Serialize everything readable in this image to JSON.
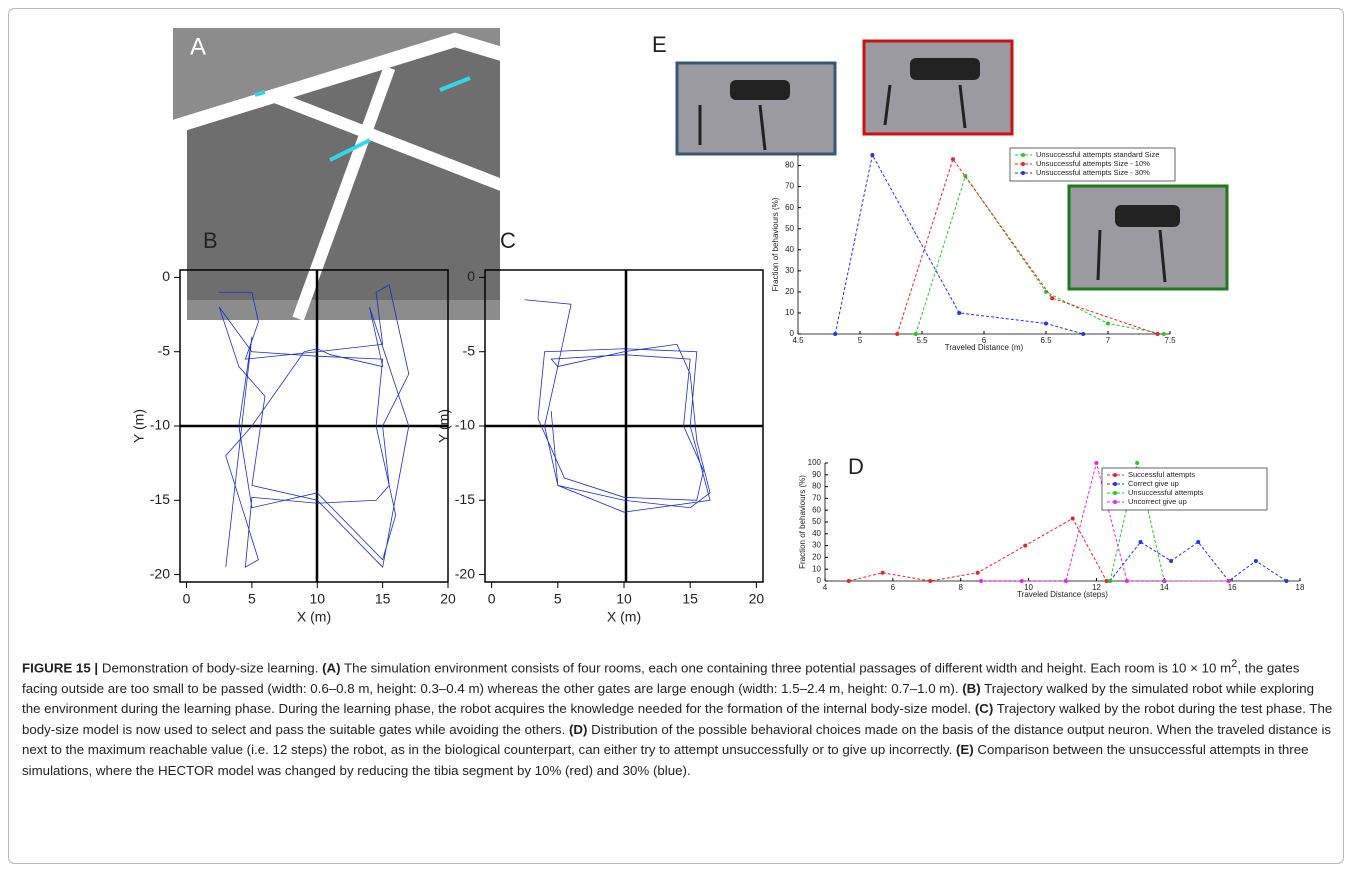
{
  "caption": {
    "label": "FIGURE 15 |",
    "intro": "Demonstration of body-size learning.",
    "parts": [
      {
        "tag": "(A)",
        "text": "The simulation environment consists of four rooms, each one containing three potential passages of different width and height. Each room is 10 × 10 m",
        "sup": "2",
        "after": ", the gates facing outside are too small to be passed (width: 0.6–0.8 m, height: 0.3–0.4 m) whereas the other gates are large enough (width: 1.5–2.4 m, height: 0.7–1.0 m)."
      },
      {
        "tag": "(B)",
        "text": "Trajectory walked by the simulated robot while exploring the environment during the learning phase. During the learning phase, the robot acquires the knowledge needed for the formation of the internal body-size model."
      },
      {
        "tag": "(C)",
        "text": "Trajectory walked by the robot during the test phase. The body-size model is now used to select and pass the suitable gates while avoiding the others."
      },
      {
        "tag": "(D)",
        "text": "Distribution of the possible behavioral choices made on the basis of the distance output neuron. When the traveled distance is next to the maximum reachable value (i.e. 12 steps) the robot, as in the biological counterpart, can either try to attempt unsuccessfully or to give up incorrectly."
      },
      {
        "tag": "(E)",
        "text": "Comparison between the unsuccessful attempts in three simulations, where the HECTOR model was changed by reducing the tibia segment by 10% (red) and 30% (blue)."
      }
    ]
  },
  "panel_a_label": "A",
  "chart_data": [
    {
      "type": "line",
      "panel": "E",
      "xlabel": "Traveled Distance (m)",
      "ylabel": "Fraction of behaviours (%)",
      "xlim": [
        4.5,
        7.5
      ],
      "xticks": [
        4.5,
        5,
        5.5,
        6,
        6.5,
        7,
        7.5
      ],
      "ylim": [
        0,
        85
      ],
      "yticks": [
        0,
        10,
        20,
        30,
        40,
        50,
        60,
        70,
        80
      ],
      "legend": "upper right",
      "markers": true,
      "dashed": true,
      "series": [
        {
          "name": "Unsuccessful attempts standard Size",
          "color": "#22cc22",
          "x": [
            5.45,
            5.85,
            6.5,
            7.0,
            7.45
          ],
          "values": [
            0,
            75,
            20,
            5,
            0
          ]
        },
        {
          "name": "Unsuccessful attempts Size - 10%",
          "color": "#ee2222",
          "x": [
            5.3,
            5.75,
            6.55,
            7.4
          ],
          "values": [
            0,
            83,
            17,
            0
          ]
        },
        {
          "name": "Unsuccessful attempts Size - 30%",
          "color": "#2233ee",
          "x": [
            4.8,
            5.1,
            5.8,
            6.5,
            6.8
          ],
          "values": [
            0,
            85,
            10,
            5,
            0
          ]
        }
      ]
    },
    {
      "type": "line",
      "panel": "D",
      "xlabel": "Traveled Distance (steps)",
      "ylabel": "Fraction of behaviours (%)",
      "xlim": [
        4,
        18
      ],
      "xticks": [
        4,
        6,
        8,
        10,
        12,
        14,
        16,
        18
      ],
      "ylim": [
        0,
        100
      ],
      "yticks": [
        0,
        10,
        20,
        30,
        40,
        50,
        60,
        70,
        80,
        90,
        100
      ],
      "legend": "upper right",
      "markers": true,
      "dashed": true,
      "series": [
        {
          "name": "Successful attempts",
          "color": "#ee2222",
          "x": [
            4.7,
            5.7,
            7.1,
            8.5,
            9.9,
            11.3,
            12.3
          ],
          "values": [
            0,
            7,
            0,
            7,
            30,
            53,
            0
          ]
        },
        {
          "name": "Correct give up",
          "color": "#2233ee",
          "x": [
            12.4,
            13.3,
            14.2,
            15.0,
            15.9,
            16.7,
            17.6
          ],
          "values": [
            0,
            33,
            17,
            33,
            0,
            17,
            0
          ]
        },
        {
          "name": "Unsuccessful attempts",
          "color": "#22cc22",
          "x": [
            12.4,
            13.2,
            14.0,
            15.9
          ],
          "values": [
            0,
            100,
            0,
            0
          ]
        },
        {
          "name": "Uncorrect give up",
          "color": "#ee22ee",
          "x": [
            8.6,
            9.8,
            11.1,
            12.0,
            12.9,
            14.0,
            15.9
          ],
          "values": [
            0,
            0,
            0,
            100,
            0,
            0,
            0
          ]
        }
      ]
    },
    {
      "type": "line",
      "panel": "B",
      "xlabel": "X (m)",
      "ylabel": "Y (m)",
      "xlim": [
        -0.5,
        20
      ],
      "xticks": [
        0,
        5,
        10,
        15,
        20
      ],
      "ylim": [
        -20.5,
        0.5
      ],
      "yticks": [
        0,
        -5,
        -10,
        -15,
        -20
      ],
      "markers": false,
      "dashed": false,
      "series": [
        {
          "color": "#1a2bd6",
          "x": [
            2.5,
            5,
            5.5,
            4.5,
            10,
            15,
            14.5,
            15.5,
            17,
            15,
            15.5,
            14.5,
            10,
            5,
            4.5,
            5.5,
            3,
            5,
            9,
            10,
            11,
            15,
            14,
            17,
            15,
            10,
            5,
            6,
            4,
            2.5,
            5,
            10,
            15,
            14.5,
            16,
            15,
            10,
            5,
            4,
            5,
            3
          ],
          "values": [
            -1,
            -1,
            -3,
            -5.5,
            -5,
            -4.5,
            -1,
            -0.5,
            -6.5,
            -10,
            -14,
            -15,
            -15.2,
            -14.8,
            -19.5,
            -19,
            -12,
            -10,
            -5,
            -4.8,
            -5.2,
            -6,
            -2,
            -10,
            -19.5,
            -15,
            -14,
            -8,
            -6,
            -2,
            -5,
            -5.3,
            -5.5,
            -10,
            -16,
            -19,
            -14.5,
            -15.5,
            -10,
            -4,
            -19.5
          ]
        }
      ]
    },
    {
      "type": "line",
      "panel": "C",
      "xlabel": "X (m)",
      "ylabel": "Y (m)",
      "xlim": [
        -0.5,
        20.5
      ],
      "xticks": [
        0,
        5,
        10,
        15,
        20
      ],
      "ylim": [
        -20.5,
        0.5
      ],
      "yticks": [
        0,
        -5,
        -10,
        -15,
        -20
      ],
      "markers": false,
      "dashed": false,
      "series": [
        {
          "color": "#1a2bd6",
          "x": [
            2.5,
            6,
            5,
            10,
            14,
            15,
            15.5,
            16.5,
            15,
            10,
            5,
            4,
            5,
            4.5,
            10,
            15,
            14.5,
            16,
            15.5,
            10,
            5.5,
            3.5,
            4,
            10,
            15.5,
            15,
            16.5,
            10,
            5,
            4.5
          ],
          "values": [
            -1.5,
            -1.8,
            -6,
            -5,
            -4.5,
            -6.5,
            -11,
            -14.5,
            -15.5,
            -15,
            -14,
            -10,
            -6,
            -5.5,
            -5.2,
            -5.5,
            -10,
            -13,
            -15,
            -14.8,
            -13.5,
            -9.5,
            -5,
            -4.8,
            -5,
            -10,
            -15,
            -15.8,
            -14,
            -9
          ]
        }
      ]
    }
  ]
}
